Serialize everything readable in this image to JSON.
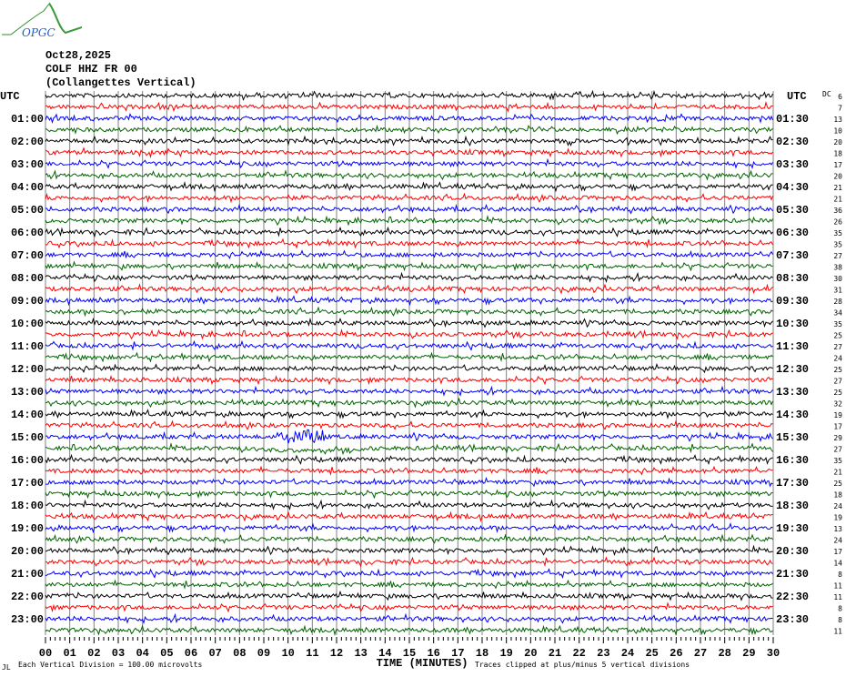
{
  "logo": {
    "text": "OPGC"
  },
  "header": {
    "date": "Oct28,2025",
    "station": "COLF HHZ FR 00",
    "location": "(Collangettes Vertical)"
  },
  "colors": {
    "trace_cycle": [
      "#000000",
      "#ff0000",
      "#0000ff",
      "#006400"
    ],
    "grid": "#808080"
  },
  "chart_data": {
    "type": "line",
    "subtype": "helicorder",
    "xlabel": "TIME (MINUTES)",
    "xlim": [
      0,
      30
    ],
    "x_tick_labels": [
      "00",
      "01",
      "02",
      "03",
      "04",
      "05",
      "06",
      "07",
      "08",
      "09",
      "10",
      "11",
      "12",
      "13",
      "14",
      "15",
      "16",
      "17",
      "18",
      "19",
      "20",
      "21",
      "22",
      "23",
      "24",
      "25",
      "26",
      "27",
      "28",
      "29",
      "30"
    ],
    "left_axis_header": "UTC",
    "right_axis_header": "UTC",
    "left_labels": [
      "UTC",
      "01:00",
      "02:00",
      "03:00",
      "04:00",
      "05:00",
      "06:00",
      "07:00",
      "08:00",
      "09:00",
      "10:00",
      "11:00",
      "12:00",
      "13:00",
      "14:00",
      "15:00",
      "16:00",
      "17:00",
      "18:00",
      "19:00",
      "20:00",
      "21:00",
      "22:00",
      "23:00"
    ],
    "right_labels": [
      "UTC",
      "01:30",
      "02:30",
      "03:30",
      "04:30",
      "05:30",
      "06:30",
      "07:30",
      "08:30",
      "09:30",
      "10:30",
      "11:30",
      "12:30",
      "13:30",
      "14:30",
      "15:30",
      "16:30",
      "17:30",
      "18:30",
      "19:30",
      "20:30",
      "21:30",
      "22:30",
      "23:30"
    ],
    "dc_header": "DC",
    "dc_values": [
      6,
      7,
      13,
      10,
      20,
      18,
      17,
      20,
      21,
      21,
      36,
      26,
      35,
      35,
      27,
      38,
      30,
      31,
      28,
      34,
      35,
      25,
      27,
      24,
      25,
      27,
      25,
      32,
      19,
      17,
      29,
      27,
      35,
      21,
      25,
      18,
      24,
      19,
      13,
      24,
      17,
      14,
      8,
      11,
      11,
      8,
      8,
      11
    ],
    "rows_per_hour": 2,
    "minutes_per_row": 30,
    "grid": true,
    "notable_event": {
      "row_start": "15:00",
      "minutes": [
        9.5,
        11.5
      ]
    }
  },
  "footer": {
    "scale": "Each Vertical Division =  100.00 microvolts",
    "clip": "Traces clipped at plus/minus 5 vertical divisions",
    "corner": "JL"
  }
}
